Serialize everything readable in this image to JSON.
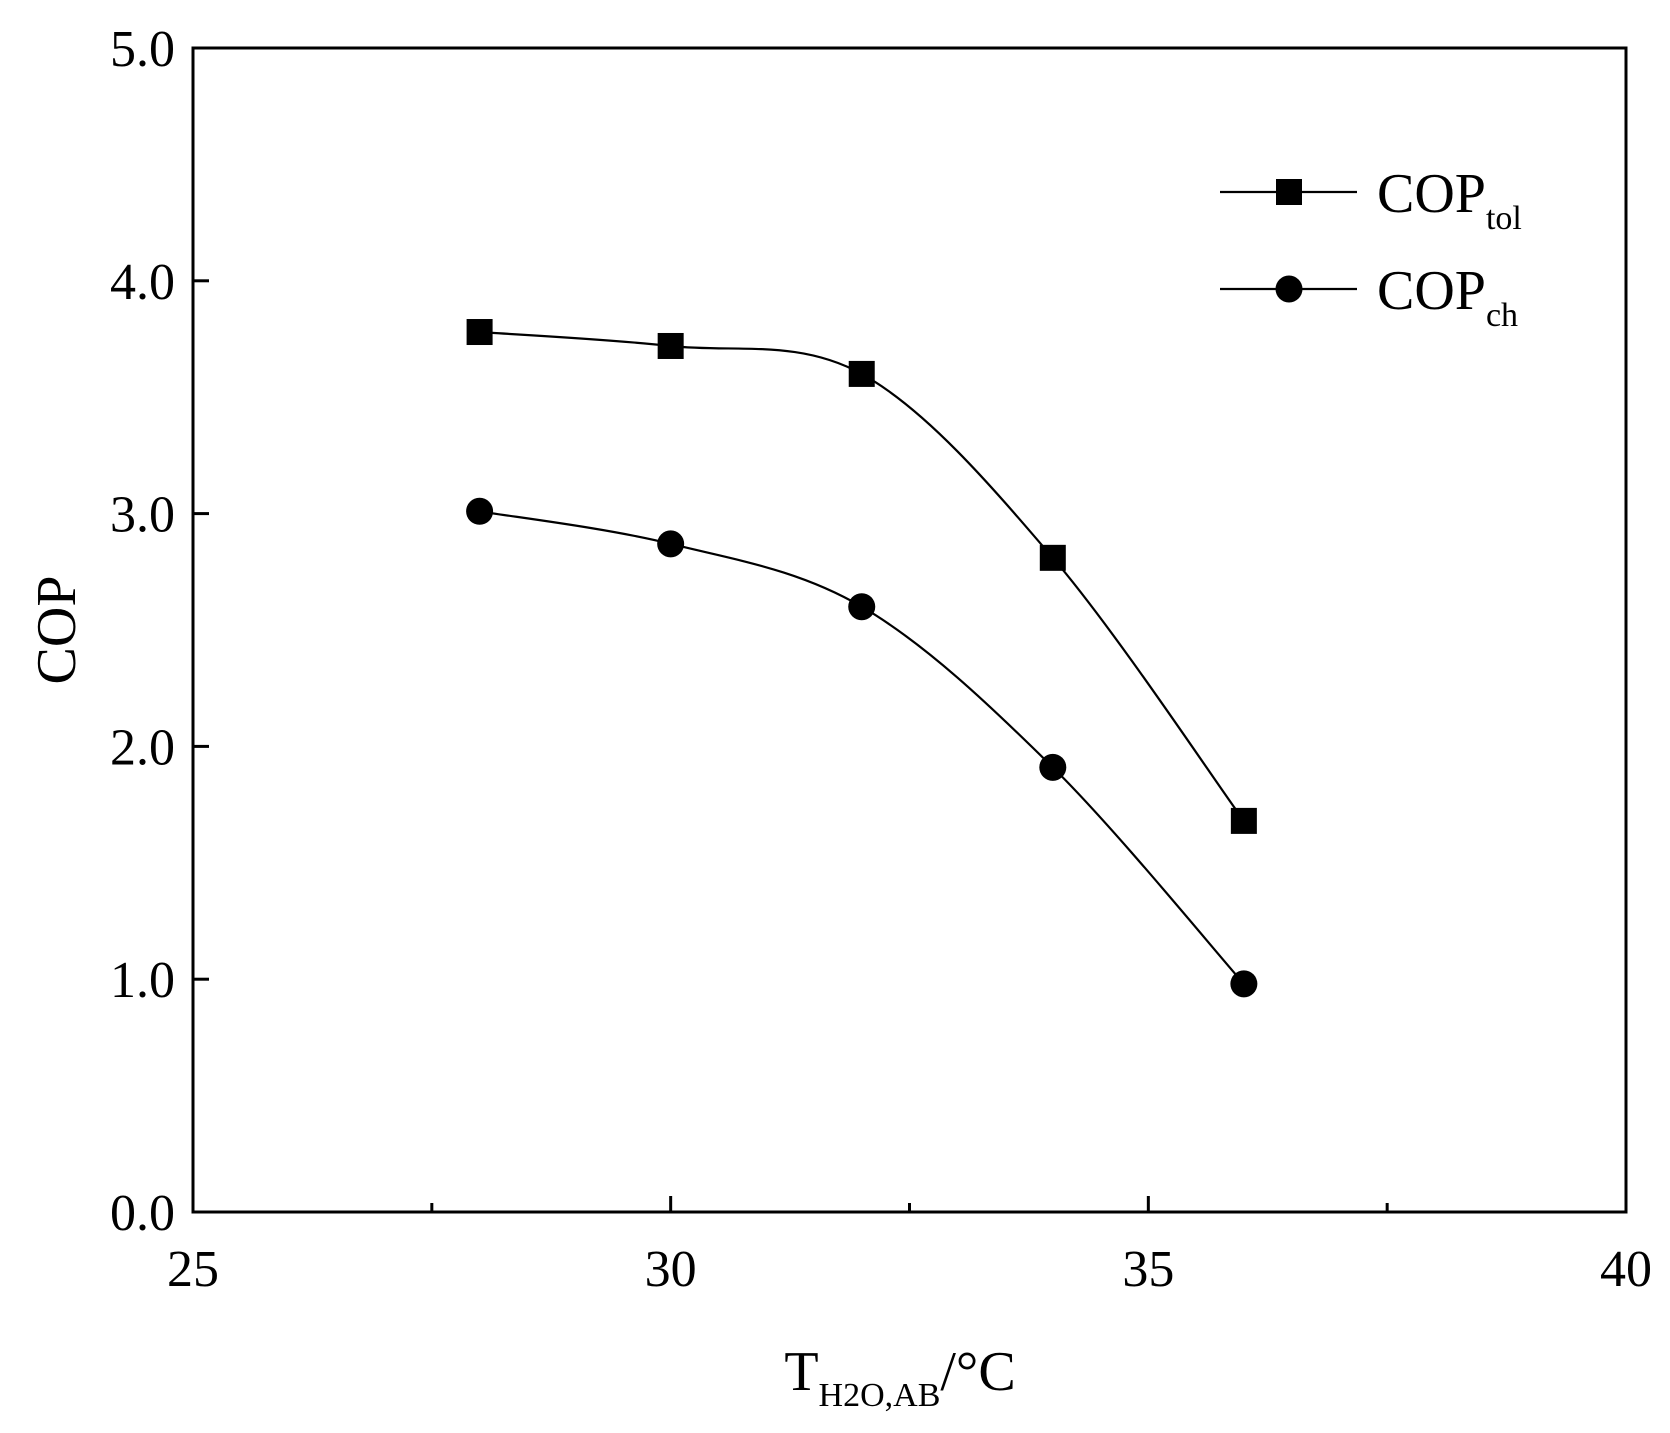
{
  "chart_data": {
    "type": "line",
    "title": "",
    "xlabel": {
      "main": "T",
      "sub": "H2O,AB",
      "suffix": "/°C"
    },
    "ylabel": "COP",
    "xlim": [
      25,
      40
    ],
    "ylim": [
      0.0,
      5.0
    ],
    "x_major_ticks": [
      25,
      30,
      35,
      40
    ],
    "x_tick_labels": [
      "25",
      "30",
      "35",
      "40"
    ],
    "x_minor_ticks": [
      27.5,
      32.5,
      37.5
    ],
    "y_ticks": [
      0.0,
      1.0,
      2.0,
      3.0,
      4.0,
      5.0
    ],
    "y_tick_labels": [
      "0.0",
      "1.0",
      "2.0",
      "3.0",
      "4.0",
      "5.0"
    ],
    "grid": false,
    "legend_position": "top-right",
    "x": [
      28,
      30,
      32,
      34,
      36
    ],
    "series": [
      {
        "name": "COP",
        "sub": "tol",
        "marker": "square",
        "values": [
          3.78,
          3.72,
          3.6,
          2.81,
          1.68
        ]
      },
      {
        "name": "COP",
        "sub": "ch",
        "marker": "circle",
        "values": [
          3.01,
          2.87,
          2.6,
          1.91,
          0.98
        ]
      }
    ]
  }
}
